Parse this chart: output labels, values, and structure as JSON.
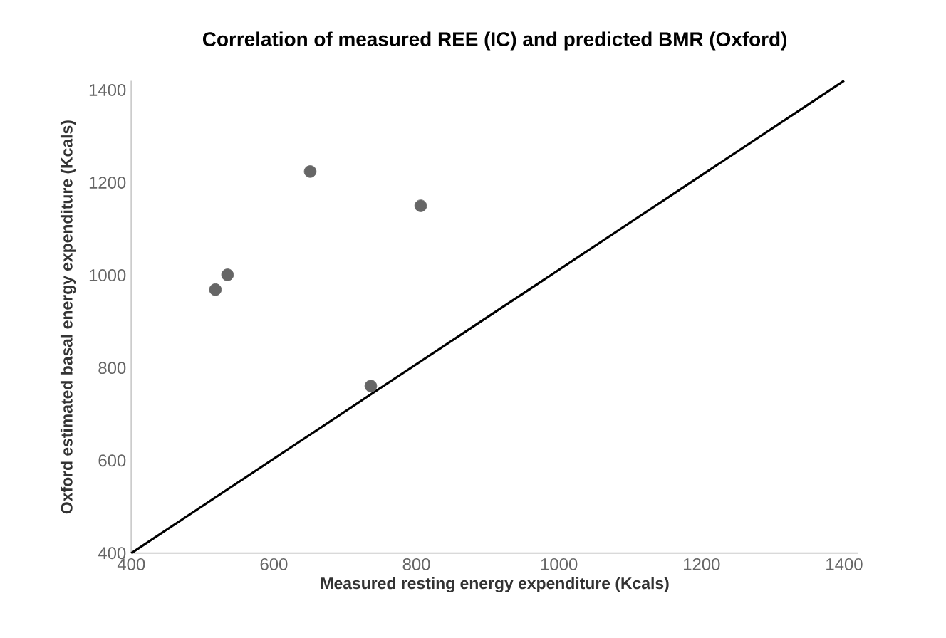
{
  "chart_data": {
    "type": "scatter",
    "title": "Correlation of measured REE (IC) and predicted BMR (Oxford)",
    "xlabel": "Measured resting energy expenditure (Kcals)",
    "ylabel": "Oxford estimated basal energy expenditure (Kcals)",
    "xlim": [
      400,
      1420
    ],
    "ylim": [
      400,
      1420
    ],
    "xticks": [
      400,
      600,
      800,
      1000,
      1200,
      1400
    ],
    "yticks": [
      400,
      600,
      800,
      1000,
      1200,
      1400
    ],
    "grid": false,
    "series": [
      {
        "color": "#666666",
        "marker": "circle",
        "x": [
          518,
          535,
          651,
          806,
          736
        ],
        "values": [
          969,
          1001,
          1224,
          1150,
          761
        ]
      },
      {
        "type": "line",
        "color": "#000000",
        "marker": "none",
        "line_style": "solid",
        "x": [
          400,
          1400
        ],
        "values": [
          400,
          1420
        ]
      }
    ]
  }
}
